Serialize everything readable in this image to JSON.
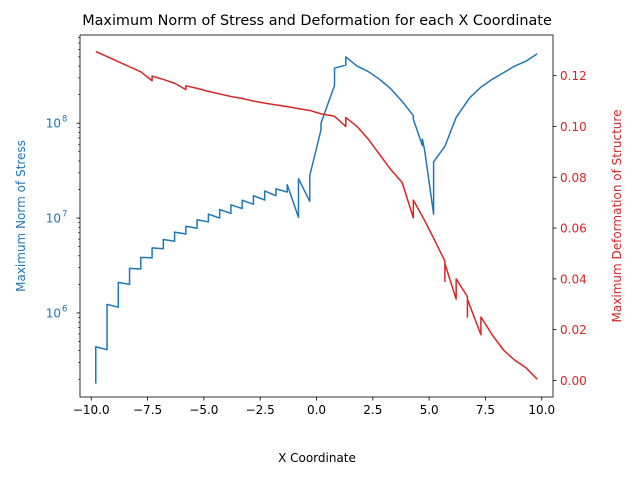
{
  "chart_data": {
    "type": "line",
    "title": "Maximum Norm of Stress and Deformation for each X Coordinate",
    "xlabel": "X Coordinate",
    "y_left_label": "Maximum Norm of Stress",
    "y_right_label": "Maximum Deformation of Structure",
    "xlim": [
      -10.5,
      10.5
    ],
    "x_ticks": [
      -10.0,
      -7.5,
      -5.0,
      -2.5,
      0.0,
      2.5,
      5.0,
      7.5,
      10.0
    ],
    "x_tick_labels": [
      "−10.0",
      "−7.5",
      "−5.0",
      "−2.5",
      "0.0",
      "2.5",
      "5.0",
      "7.5",
      "10.0"
    ],
    "y_left_scale": "log",
    "y_left_lim": [
      130000,
      850000000
    ],
    "y_left_ticks": [
      1000000,
      10000000,
      100000000
    ],
    "y_left_tick_labels": [
      {
        "base": "10",
        "exp": "6"
      },
      {
        "base": "10",
        "exp": "7"
      },
      {
        "base": "10",
        "exp": "8"
      }
    ],
    "y_right_lim": [
      -0.0065,
      0.136
    ],
    "y_right_ticks": [
      0.0,
      0.02,
      0.04,
      0.06,
      0.08,
      0.1,
      0.12
    ],
    "y_right_tick_labels": [
      "0.00",
      "0.02",
      "0.04",
      "0.06",
      "0.08",
      "0.10",
      "0.12"
    ],
    "grid": false,
    "legend": "none",
    "colors": {
      "stress": "#1f77b4",
      "deformation": "#d62728",
      "text": "#000000"
    },
    "series": [
      {
        "axis": "left",
        "color": "#1f77b4",
        "points": [
          [
            -9.8,
            180000
          ],
          [
            -9.8,
            440000
          ],
          [
            -9.3,
            410000
          ],
          [
            -9.3,
            1230000
          ],
          [
            -8.8,
            1150000
          ],
          [
            -8.8,
            2100000
          ],
          [
            -8.3,
            2000000
          ],
          [
            -8.3,
            2950000
          ],
          [
            -7.8,
            2900000
          ],
          [
            -7.8,
            3850000
          ],
          [
            -7.3,
            3800000
          ],
          [
            -7.3,
            4850000
          ],
          [
            -6.8,
            4750000
          ],
          [
            -6.8,
            5950000
          ],
          [
            -6.3,
            5700000
          ],
          [
            -6.3,
            7100000
          ],
          [
            -5.8,
            6800000
          ],
          [
            -5.8,
            8200000
          ],
          [
            -5.3,
            7800000
          ],
          [
            -5.3,
            9600000
          ],
          [
            -4.8,
            9100000
          ],
          [
            -4.8,
            11000000
          ],
          [
            -4.3,
            10000000
          ],
          [
            -4.3,
            12300000
          ],
          [
            -3.8,
            11200000
          ],
          [
            -3.8,
            13800000
          ],
          [
            -3.3,
            12600000
          ],
          [
            -3.3,
            15400000
          ],
          [
            -2.8,
            14000000
          ],
          [
            -2.8,
            17200000
          ],
          [
            -2.3,
            15500000
          ],
          [
            -2.3,
            19300000
          ],
          [
            -1.8,
            17200000
          ],
          [
            -1.8,
            20300000
          ],
          [
            -1.3,
            18800000
          ],
          [
            -1.3,
            22500000
          ],
          [
            -0.8,
            10200000
          ],
          [
            -0.8,
            26000000
          ],
          [
            -0.3,
            15000000
          ],
          [
            -0.3,
            28000000
          ],
          [
            0.2,
            85000000
          ],
          [
            0.2,
            100000000
          ],
          [
            0.8,
            250000000
          ],
          [
            0.8,
            380000000
          ],
          [
            1.3,
            410000000
          ],
          [
            1.3,
            500000000
          ],
          [
            1.8,
            400000000
          ],
          [
            2.3,
            350000000
          ],
          [
            2.8,
            290000000
          ],
          [
            3.3,
            230000000
          ],
          [
            3.8,
            170000000
          ],
          [
            4.3,
            120000000
          ],
          [
            4.3,
            110000000
          ],
          [
            4.7,
            58000000
          ],
          [
            4.7,
            68000000
          ],
          [
            4.8,
            52000000
          ],
          [
            5.2,
            11000000
          ],
          [
            5.2,
            39000000
          ],
          [
            5.7,
            57000000
          ],
          [
            6.2,
            115000000
          ],
          [
            6.8,
            185000000
          ],
          [
            7.3,
            240000000
          ],
          [
            7.8,
            290000000
          ],
          [
            8.3,
            340000000
          ],
          [
            8.8,
            400000000
          ],
          [
            9.3,
            450000000
          ],
          [
            9.8,
            540000000
          ]
        ]
      },
      {
        "axis": "right",
        "color": "#d62728",
        "points": [
          [
            -9.8,
            0.1295
          ],
          [
            -9.3,
            0.1275
          ],
          [
            -8.8,
            0.1255
          ],
          [
            -8.3,
            0.1235
          ],
          [
            -7.8,
            0.1215
          ],
          [
            -7.3,
            0.118
          ],
          [
            -7.3,
            0.1198
          ],
          [
            -6.8,
            0.1185
          ],
          [
            -6.3,
            0.117
          ],
          [
            -5.8,
            0.1145
          ],
          [
            -5.8,
            0.116
          ],
          [
            -5.3,
            0.115
          ],
          [
            -4.8,
            0.1138
          ],
          [
            -4.3,
            0.1128
          ],
          [
            -3.8,
            0.1118
          ],
          [
            -3.3,
            0.111
          ],
          [
            -2.8,
            0.11
          ],
          [
            -2.3,
            0.1092
          ],
          [
            -1.8,
            0.1085
          ],
          [
            -1.3,
            0.1078
          ],
          [
            -0.8,
            0.107
          ],
          [
            -0.3,
            0.1063
          ],
          [
            0.2,
            0.105
          ],
          [
            0.8,
            0.104
          ],
          [
            1.3,
            0.1
          ],
          [
            1.3,
            0.1035
          ],
          [
            1.8,
            0.1
          ],
          [
            2.3,
            0.095
          ],
          [
            2.8,
            0.089
          ],
          [
            3.3,
            0.083
          ],
          [
            3.8,
            0.078
          ],
          [
            4.3,
            0.064
          ],
          [
            4.3,
            0.071
          ],
          [
            4.8,
            0.063
          ],
          [
            5.2,
            0.056
          ],
          [
            5.7,
            0.047
          ],
          [
            5.7,
            0.039
          ],
          [
            5.7,
            0.046
          ],
          [
            6.2,
            0.032
          ],
          [
            6.2,
            0.04
          ],
          [
            6.7,
            0.033
          ],
          [
            6.7,
            0.025
          ],
          [
            6.7,
            0.032
          ],
          [
            7.3,
            0.018
          ],
          [
            7.3,
            0.025
          ],
          [
            7.8,
            0.018
          ],
          [
            8.3,
            0.012
          ],
          [
            8.8,
            0.008
          ],
          [
            9.3,
            0.005
          ],
          [
            9.8,
            0.0005
          ]
        ]
      }
    ]
  }
}
